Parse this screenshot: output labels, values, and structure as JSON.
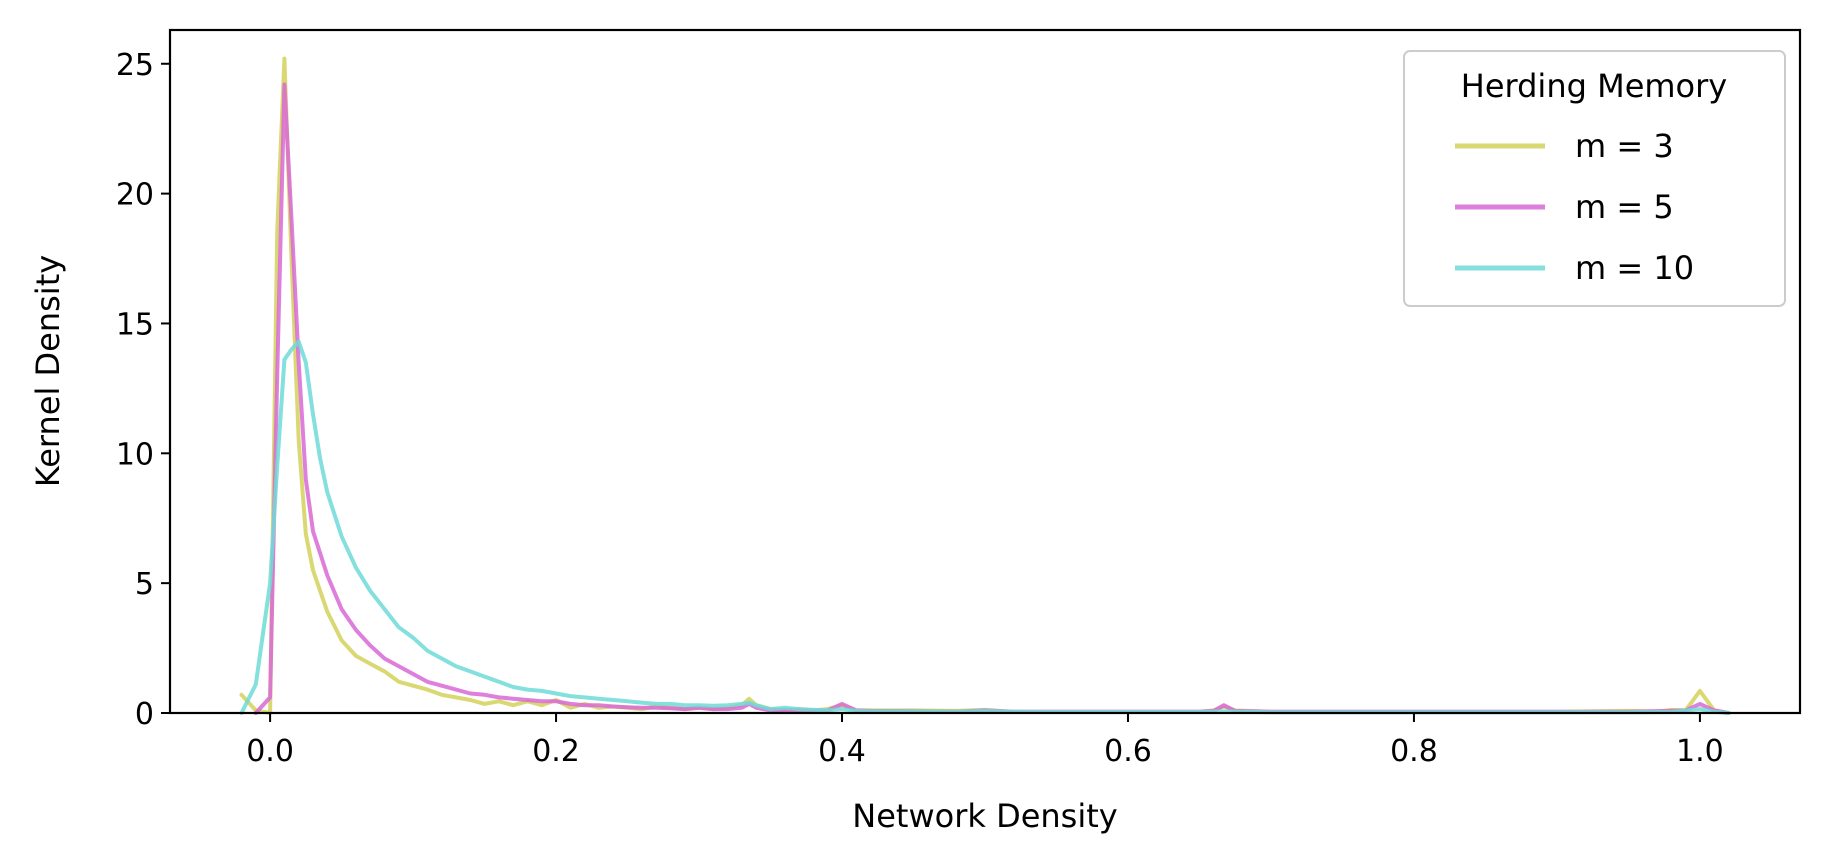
{
  "chart_data": {
    "type": "line",
    "xlabel": "Network Density",
    "ylabel": "Kernel Density",
    "xlim": [
      -0.07,
      1.07
    ],
    "ylim": [
      0,
      26.3
    ],
    "xticks": [
      "0.0",
      "0.2",
      "0.4",
      "0.6",
      "0.8",
      "1.0"
    ],
    "yticks": [
      "0",
      "5",
      "10",
      "15",
      "20",
      "25"
    ],
    "grid": false,
    "legend": {
      "title": "Herding Memory",
      "position": "upper right"
    },
    "series": [
      {
        "name": "m = 3",
        "color": "#d4d15a",
        "x": [
          -0.02,
          -0.01,
          0.0,
          0.005,
          0.01,
          0.015,
          0.02,
          0.025,
          0.03,
          0.04,
          0.05,
          0.06,
          0.07,
          0.08,
          0.09,
          0.1,
          0.11,
          0.12,
          0.13,
          0.14,
          0.15,
          0.16,
          0.17,
          0.18,
          0.19,
          0.2,
          0.21,
          0.22,
          0.23,
          0.24,
          0.25,
          0.26,
          0.27,
          0.28,
          0.29,
          0.3,
          0.31,
          0.32,
          0.33,
          0.335,
          0.34,
          0.35,
          0.36,
          0.37,
          0.38,
          0.39,
          0.4,
          0.41,
          0.42,
          0.45,
          0.48,
          0.5,
          0.52,
          0.55,
          0.6,
          0.65,
          0.66,
          0.667,
          0.675,
          0.7,
          0.8,
          0.9,
          0.95,
          0.97,
          0.98,
          0.99,
          1.0,
          1.01,
          1.02
        ],
        "y": [
          0.7,
          0.1,
          0.0,
          18.5,
          25.2,
          17.5,
          10.5,
          6.9,
          5.5,
          3.9,
          2.8,
          2.2,
          1.9,
          1.6,
          1.2,
          1.05,
          0.9,
          0.7,
          0.6,
          0.5,
          0.35,
          0.45,
          0.3,
          0.45,
          0.3,
          0.5,
          0.2,
          0.35,
          0.2,
          0.25,
          0.2,
          0.15,
          0.25,
          0.2,
          0.15,
          0.2,
          0.15,
          0.2,
          0.3,
          0.55,
          0.3,
          0.15,
          0.1,
          0.15,
          0.1,
          0.15,
          0.3,
          0.1,
          0.1,
          0.1,
          0.08,
          0.12,
          0.05,
          0.05,
          0.05,
          0.05,
          0.1,
          0.25,
          0.1,
          0.05,
          0.05,
          0.05,
          0.08,
          0.05,
          0.12,
          0.1,
          0.85,
          0.1,
          0.0
        ]
      },
      {
        "name": "m = 5",
        "color": "#d869d6",
        "x": [
          -0.01,
          0.0,
          0.005,
          0.01,
          0.015,
          0.02,
          0.025,
          0.03,
          0.04,
          0.05,
          0.06,
          0.07,
          0.08,
          0.09,
          0.1,
          0.11,
          0.12,
          0.13,
          0.14,
          0.15,
          0.16,
          0.17,
          0.18,
          0.19,
          0.2,
          0.21,
          0.22,
          0.23,
          0.24,
          0.25,
          0.26,
          0.27,
          0.28,
          0.29,
          0.3,
          0.31,
          0.32,
          0.33,
          0.335,
          0.34,
          0.35,
          0.36,
          0.37,
          0.38,
          0.39,
          0.4,
          0.41,
          0.42,
          0.45,
          0.48,
          0.5,
          0.52,
          0.55,
          0.6,
          0.65,
          0.66,
          0.667,
          0.675,
          0.7,
          0.8,
          0.9,
          0.95,
          0.98,
          0.99,
          1.0,
          1.01,
          1.02
        ],
        "y": [
          0.0,
          0.6,
          13.0,
          24.2,
          19.0,
          13.5,
          9.0,
          7.0,
          5.3,
          4.0,
          3.2,
          2.6,
          2.1,
          1.8,
          1.5,
          1.2,
          1.05,
          0.9,
          0.75,
          0.7,
          0.6,
          0.55,
          0.5,
          0.45,
          0.45,
          0.35,
          0.3,
          0.3,
          0.25,
          0.22,
          0.2,
          0.2,
          0.18,
          0.15,
          0.2,
          0.15,
          0.15,
          0.2,
          0.35,
          0.2,
          0.1,
          0.12,
          0.1,
          0.08,
          0.1,
          0.35,
          0.1,
          0.08,
          0.07,
          0.05,
          0.1,
          0.05,
          0.05,
          0.05,
          0.05,
          0.08,
          0.3,
          0.08,
          0.05,
          0.05,
          0.05,
          0.05,
          0.08,
          0.1,
          0.35,
          0.1,
          0.0
        ]
      },
      {
        "name": "m = 10",
        "color": "#6fdad6",
        "x": [
          -0.02,
          -0.01,
          0.0,
          0.005,
          0.01,
          0.015,
          0.02,
          0.025,
          0.03,
          0.035,
          0.04,
          0.05,
          0.06,
          0.07,
          0.08,
          0.09,
          0.1,
          0.11,
          0.12,
          0.13,
          0.14,
          0.15,
          0.16,
          0.17,
          0.18,
          0.19,
          0.2,
          0.21,
          0.22,
          0.23,
          0.24,
          0.25,
          0.26,
          0.27,
          0.28,
          0.29,
          0.3,
          0.31,
          0.32,
          0.33,
          0.335,
          0.34,
          0.35,
          0.36,
          0.37,
          0.38,
          0.39,
          0.4,
          0.41,
          0.42,
          0.45,
          0.48,
          0.5,
          0.52,
          0.55,
          0.6,
          0.65,
          0.667,
          0.7,
          0.8,
          0.9,
          0.95,
          0.98,
          1.0,
          1.01,
          1.02
        ],
        "y": [
          0.0,
          1.1,
          5.0,
          9.5,
          13.6,
          14.0,
          14.3,
          13.5,
          11.5,
          9.8,
          8.5,
          6.8,
          5.6,
          4.7,
          4.0,
          3.3,
          2.9,
          2.4,
          2.1,
          1.8,
          1.6,
          1.4,
          1.2,
          1.0,
          0.9,
          0.85,
          0.75,
          0.65,
          0.6,
          0.55,
          0.5,
          0.45,
          0.4,
          0.35,
          0.35,
          0.3,
          0.3,
          0.28,
          0.3,
          0.35,
          0.4,
          0.3,
          0.15,
          0.2,
          0.15,
          0.12,
          0.1,
          0.15,
          0.08,
          0.07,
          0.06,
          0.05,
          0.08,
          0.05,
          0.04,
          0.04,
          0.04,
          0.06,
          0.03,
          0.03,
          0.03,
          0.03,
          0.04,
          0.15,
          0.05,
          0.0
        ]
      }
    ]
  }
}
